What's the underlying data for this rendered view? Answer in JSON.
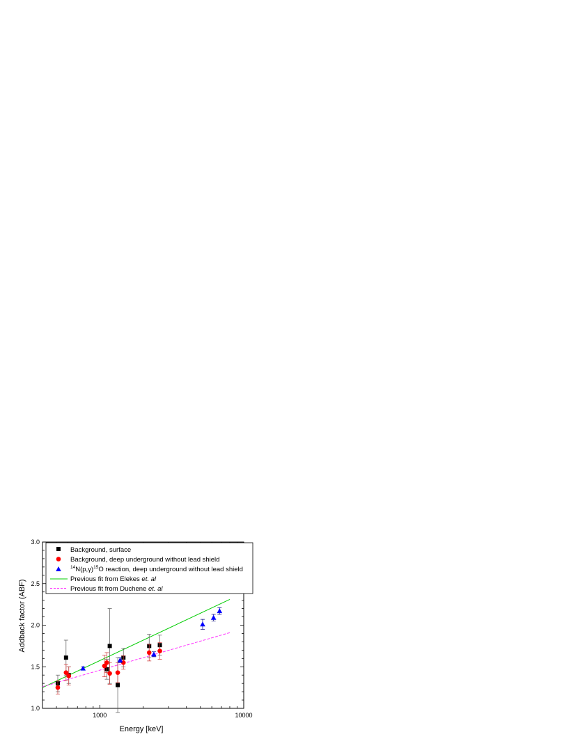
{
  "chart_data": {
    "type": "scatter",
    "xscale": "log",
    "xlim": [
      400,
      10000
    ],
    "ylim": [
      1.0,
      3.0
    ],
    "xlabel": "Energy [keV]",
    "ylabel": "Addback factor (ABF)",
    "x_tick_labels": [
      {
        "value": 1000,
        "label": "1000"
      },
      {
        "value": 10000,
        "label": "10000"
      }
    ],
    "y_tick_labels": [
      {
        "value": 1.0,
        "label": "1.0"
      },
      {
        "value": 1.5,
        "label": "1.5"
      },
      {
        "value": 2.0,
        "label": "2.0"
      },
      {
        "value": 2.5,
        "label": "2.5"
      },
      {
        "value": 3.0,
        "label": "3.0"
      }
    ],
    "legend_position": "top",
    "series": [
      {
        "name": "Background, surface",
        "marker": "square",
        "color": "#000000",
        "error_color": "#555555",
        "points": [
          {
            "x": 511,
            "y": 1.3,
            "err": 0.1
          },
          {
            "x": 583,
            "y": 1.61,
            "err": 0.21
          },
          {
            "x": 609,
            "y": 1.4,
            "err": 0.1
          },
          {
            "x": 1120,
            "y": 1.47,
            "err": 0.12
          },
          {
            "x": 1173,
            "y": 1.75,
            "err": 0.45
          },
          {
            "x": 1333,
            "y": 1.28,
            "err": 0.33
          },
          {
            "x": 1460,
            "y": 1.61,
            "err": 0.11
          },
          {
            "x": 2204,
            "y": 1.75,
            "err": 0.14
          },
          {
            "x": 2614,
            "y": 1.76,
            "err": 0.12
          }
        ]
      },
      {
        "name": "Background, deep underground without lead shield",
        "marker": "circle",
        "color": "#ff0000",
        "error_color": "#cc3333",
        "points": [
          {
            "x": 511,
            "y": 1.25,
            "err": 0.08
          },
          {
            "x": 583,
            "y": 1.43,
            "err": 0.1
          },
          {
            "x": 609,
            "y": 1.39,
            "err": 0.11
          },
          {
            "x": 1077,
            "y": 1.51,
            "err": 0.13
          },
          {
            "x": 1120,
            "y": 1.55,
            "err": 0.12
          },
          {
            "x": 1173,
            "y": 1.42,
            "err": 0.13
          },
          {
            "x": 1333,
            "y": 1.43,
            "err": 0.12
          },
          {
            "x": 1460,
            "y": 1.55,
            "err": 0.08
          },
          {
            "x": 2204,
            "y": 1.67,
            "err": 0.1
          },
          {
            "x": 2614,
            "y": 1.69,
            "err": 0.1
          }
        ]
      },
      {
        "name": "14N(p,γ)15O reaction, deep underground without lead shield",
        "marker": "triangle",
        "color": "#0000ff",
        "error_color": "#000080",
        "points": [
          {
            "x": 765,
            "y": 1.48,
            "err": 0.02
          },
          {
            "x": 1385,
            "y": 1.58,
            "err": 0.03
          },
          {
            "x": 2375,
            "y": 1.65,
            "err": 0.03
          },
          {
            "x": 5181,
            "y": 2.01,
            "err": 0.06
          },
          {
            "x": 6172,
            "y": 2.09,
            "err": 0.04
          },
          {
            "x": 6793,
            "y": 2.17,
            "err": 0.04
          }
        ]
      }
    ],
    "fit_lines": [
      {
        "name": "Previous fit from Elekes et. al",
        "style": "solid",
        "color": "#00cc00",
        "points": [
          {
            "x": 400,
            "y": 1.25
          },
          {
            "x": 8000,
            "y": 2.31
          }
        ]
      },
      {
        "name": "Previous fit from Duchene et. al",
        "style": "dashed",
        "color": "#ff33ff",
        "points": [
          {
            "x": 400,
            "y": 1.26
          },
          {
            "x": 8000,
            "y": 1.91
          }
        ]
      }
    ],
    "legend": [
      {
        "label": "Background, surface",
        "marker": "square",
        "color": "#000000"
      },
      {
        "label_prefix": "14",
        "label_part2": "N(p,γ)",
        "label_sup2": "15",
        "label_part3": "O reaction, deep underground without lead shield",
        "marker": "triangle",
        "color": "#0000ff"
      }
    ],
    "legend_lines": [
      {
        "label": "Background, deep underground without lead shield",
        "marker": "circle",
        "color": "#ff0000"
      },
      {
        "label": "Previous fit from Elekes ",
        "italic": "et. al",
        "style": "solid",
        "color": "#00cc00"
      },
      {
        "label": "Previous fit from Duchene ",
        "italic": "et. al",
        "style": "dashed",
        "color": "#ff33ff"
      }
    ]
  }
}
